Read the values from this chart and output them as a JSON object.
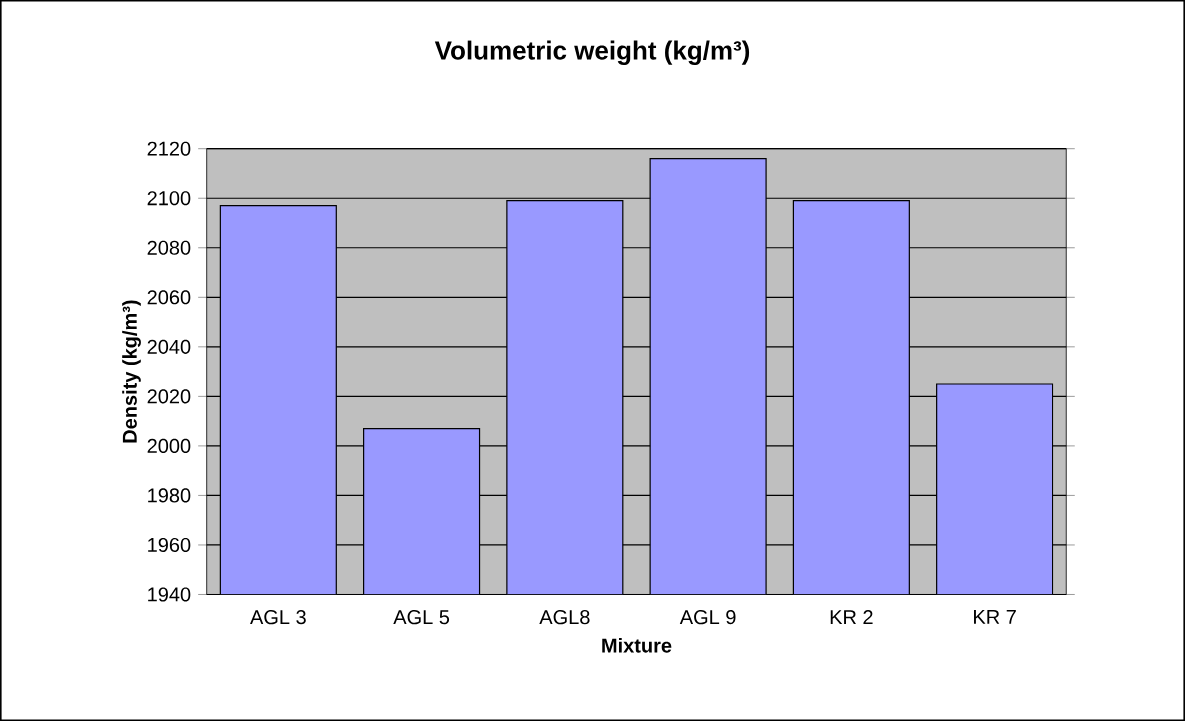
{
  "chart_data": {
    "type": "bar",
    "title": "Volumetric weight (kg/m³)",
    "xlabel": "Mixture",
    "ylabel": "Density (kg/m³)",
    "categories": [
      "AGL 3",
      "AGL 5",
      "AGL8",
      "AGL 9",
      "KR 2",
      "KR 7"
    ],
    "values": [
      2097,
      2007,
      2099,
      2116,
      2099,
      2025
    ],
    "color": "#9999ff",
    "ylim": [
      1940,
      2120
    ],
    "yticks": [
      1940,
      1960,
      1980,
      2000,
      2020,
      2040,
      2060,
      2080,
      2100,
      2120
    ],
    "grid": "y"
  }
}
